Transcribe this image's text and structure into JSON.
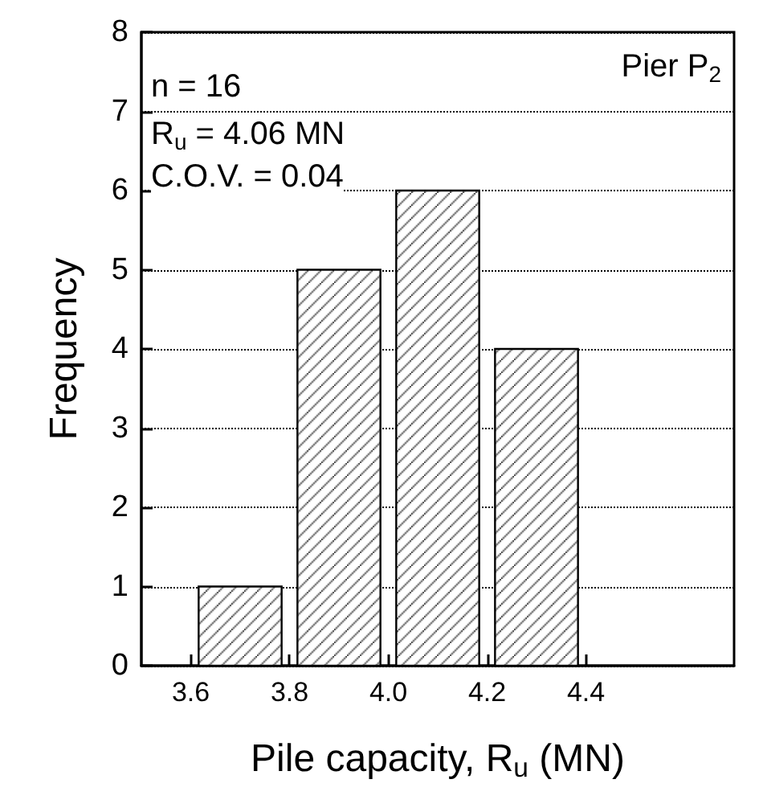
{
  "chart_data": {
    "type": "histogram",
    "bins": [
      3.6,
      3.8,
      4.0,
      4.2,
      4.4
    ],
    "values": [
      1,
      5,
      6,
      4
    ],
    "color": "#000000",
    "xlabel": "Pile capacity, R$_{u}$ (MN)",
    "ylabel": "Frequency",
    "xlim": [
      3.5,
      4.7
    ],
    "xticks": [
      {
        "value": 3.6,
        "label": "3.6"
      },
      {
        "value": 3.8,
        "label": "3.8"
      },
      {
        "value": 4.0,
        "label": "4.0"
      },
      {
        "value": 4.2,
        "label": "4.2"
      },
      {
        "value": 4.4,
        "label": "4.4"
      }
    ],
    "ylim": [
      0,
      8
    ],
    "yticks": [
      0,
      1,
      2,
      3,
      4,
      5,
      6,
      7,
      8
    ],
    "grid": "y",
    "annotations": [
      "n = 16",
      "R$_{u}$ = 4.06 MN",
      "C.O.V. = 0.04",
      "Pier P$_{2}$"
    ]
  }
}
